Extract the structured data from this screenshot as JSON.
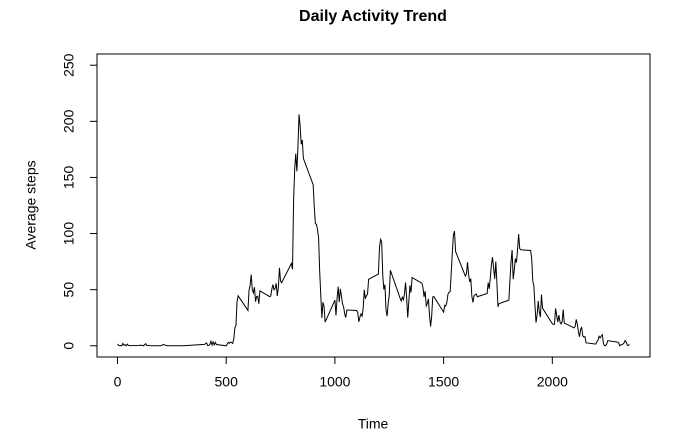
{
  "chart_data": {
    "type": "line",
    "title": "Daily Activity Trend",
    "x_label": "Time",
    "y_label": "Average steps",
    "color": "#000000",
    "xlim": [
      -94.2,
      2449.2
    ],
    "ylim": [
      -10,
      260
    ],
    "xticks": [
      0,
      500,
      1000,
      1500,
      2000
    ],
    "yticks": [
      0,
      50,
      100,
      150,
      200,
      250
    ],
    "x": [
      0,
      5,
      10,
      15,
      20,
      25,
      30,
      35,
      40,
      45,
      50,
      55,
      100,
      105,
      110,
      115,
      120,
      125,
      130,
      135,
      140,
      145,
      150,
      155,
      200,
      210,
      230,
      300,
      320,
      400,
      410,
      415,
      420,
      425,
      430,
      435,
      440,
      445,
      450,
      455,
      500,
      505,
      510,
      515,
      520,
      525,
      530,
      535,
      540,
      545,
      550,
      555,
      600,
      605,
      610,
      615,
      620,
      625,
      630,
      635,
      640,
      645,
      650,
      655,
      700,
      705,
      710,
      715,
      720,
      725,
      730,
      735,
      740,
      745,
      750,
      755,
      800,
      805,
      810,
      815,
      820,
      825,
      830,
      835,
      840,
      845,
      850,
      855,
      900,
      905,
      910,
      915,
      920,
      925,
      930,
      935,
      940,
      945,
      950,
      955,
      1000,
      1005,
      1010,
      1015,
      1020,
      1025,
      1030,
      1035,
      1040,
      1045,
      1050,
      1055,
      1100,
      1105,
      1110,
      1115,
      1120,
      1125,
      1130,
      1135,
      1140,
      1145,
      1150,
      1155,
      1200,
      1205,
      1210,
      1215,
      1220,
      1225,
      1230,
      1235,
      1240,
      1245,
      1250,
      1255,
      1300,
      1305,
      1310,
      1315,
      1320,
      1325,
      1330,
      1335,
      1340,
      1345,
      1350,
      1355,
      1400,
      1405,
      1410,
      1415,
      1420,
      1425,
      1430,
      1435,
      1440,
      1445,
      1450,
      1455,
      1500,
      1505,
      1510,
      1515,
      1520,
      1525,
      1530,
      1535,
      1540,
      1545,
      1550,
      1555,
      1600,
      1605,
      1610,
      1615,
      1620,
      1625,
      1630,
      1635,
      1640,
      1645,
      1650,
      1655,
      1700,
      1705,
      1710,
      1715,
      1720,
      1725,
      1730,
      1735,
      1740,
      1745,
      1750,
      1755,
      1800,
      1805,
      1810,
      1815,
      1820,
      1825,
      1830,
      1835,
      1840,
      1845,
      1850,
      1855,
      1900,
      1905,
      1910,
      1915,
      1920,
      1925,
      1930,
      1935,
      1940,
      1945,
      1950,
      1955,
      2000,
      2005,
      2010,
      2015,
      2020,
      2025,
      2030,
      2035,
      2040,
      2045,
      2050,
      2055,
      2100,
      2105,
      2110,
      2115,
      2120,
      2125,
      2130,
      2135,
      2140,
      2145,
      2150,
      2155,
      2200,
      2205,
      2210,
      2215,
      2220,
      2225,
      2230,
      2235,
      2240,
      2245,
      2250,
      2255,
      2300,
      2305,
      2310,
      2315,
      2320,
      2325,
      2330,
      2335,
      2340,
      2345,
      2350,
      2355
    ],
    "values": [
      1.7,
      0.3,
      0.1,
      0.2,
      0.1,
      2.1,
      0.5,
      0.9,
      0,
      1.5,
      0.3,
      0.1,
      0.3,
      0.7,
      0.2,
      0.3,
      0,
      1.1,
      1.8,
      0.2,
      0.2,
      0.4,
      0.3,
      0,
      0,
      1.1,
      0,
      0,
      0.2,
      1.2,
      2.6,
      0.1,
      0.4,
      1.3,
      4.1,
      0.7,
      3.5,
      0.8,
      3.1,
      1.1,
      0,
      1.6,
      3,
      2.2,
      3.3,
      3,
      2.1,
      6.1,
      16,
      18.3,
      39.5,
      44.5,
      31.5,
      49.3,
      53.8,
      63.5,
      50,
      47.1,
      52.2,
      39.3,
      44,
      44.2,
      37.4,
      49,
      43.8,
      44.4,
      50.5,
      54.5,
      49.9,
      51,
      55.7,
      44.3,
      52.3,
      69.5,
      57.8,
      56.2,
      73.4,
      68.2,
      129.4,
      157.5,
      171.2,
      155.4,
      177.3,
      206.2,
      195.9,
      179.6,
      183.4,
      167,
      143.5,
      124,
      109.1,
      108.1,
      103.7,
      95.9,
      66.2,
      45.2,
      24.8,
      38.8,
      35,
      21.1,
      40.6,
      27,
      42.4,
      52.7,
      38.9,
      50.8,
      44.3,
      37.4,
      34.7,
      28.3,
      25.1,
      31.9,
      31.4,
      29.7,
      21.3,
      25.5,
      28.4,
      26.5,
      33.4,
      49.9,
      42,
      44.6,
      46,
      59.2,
      63.9,
      87.7,
      94.8,
      92.8,
      63.4,
      50.2,
      54.5,
      32.4,
      26.5,
      37.7,
      45.1,
      67.3,
      42.3,
      39.9,
      43.3,
      41,
      46.2,
      56.4,
      42.8,
      25.1,
      39.5,
      53.8,
      47.4,
      60.8,
      55.8,
      52,
      43.6,
      48.7,
      35.5,
      37.5,
      41.8,
      27.5,
      17.1,
      26.1,
      43.6,
      43.8,
      30,
      36.1,
      35.5,
      38.8,
      46,
      47.8,
      48.1,
      65.3,
      82.9,
      98.7,
      102.1,
      84,
      62.1,
      64.1,
      74.5,
      63.2,
      56.9,
      59.8,
      43.9,
      38.6,
      44.7,
      45.5,
      46.2,
      43.7,
      46.6,
      56.3,
      50.7,
      61.2,
      72.7,
      78.9,
      68.9,
      59.7,
      75.1,
      56.5,
      34.8,
      37.5,
      40.7,
      58,
      74.7,
      85.3,
      59.3,
      67.8,
      77.7,
      74.2,
      85.3,
      99.5,
      86.6,
      85.6,
      84.9,
      77.8,
      58,
      53.4,
      36.3,
      20.7,
      27.4,
      40,
      30.2,
      25.5,
      45.7,
      33.5,
      19.6,
      19,
      19.3,
      33.3,
      26.8,
      21.2,
      27.3,
      21.3,
      19.5,
      21.3,
      32.3,
      20.2,
      15.9,
      17.2,
      23.5,
      19.2,
      12.5,
      8,
      14.7,
      16.3,
      8.7,
      7.8,
      8.1,
      2.6,
      1.5,
      3.7,
      4.8,
      8.5,
      7.1,
      8.7,
      9.8,
      2.2,
      0.3,
      0.1,
      1.6,
      4.6,
      3.3,
      2.8,
      0,
      0.8,
      1,
      1.6,
      2.6,
      4.7,
      3.3,
      0.6,
      0.2,
      1.1
    ]
  }
}
